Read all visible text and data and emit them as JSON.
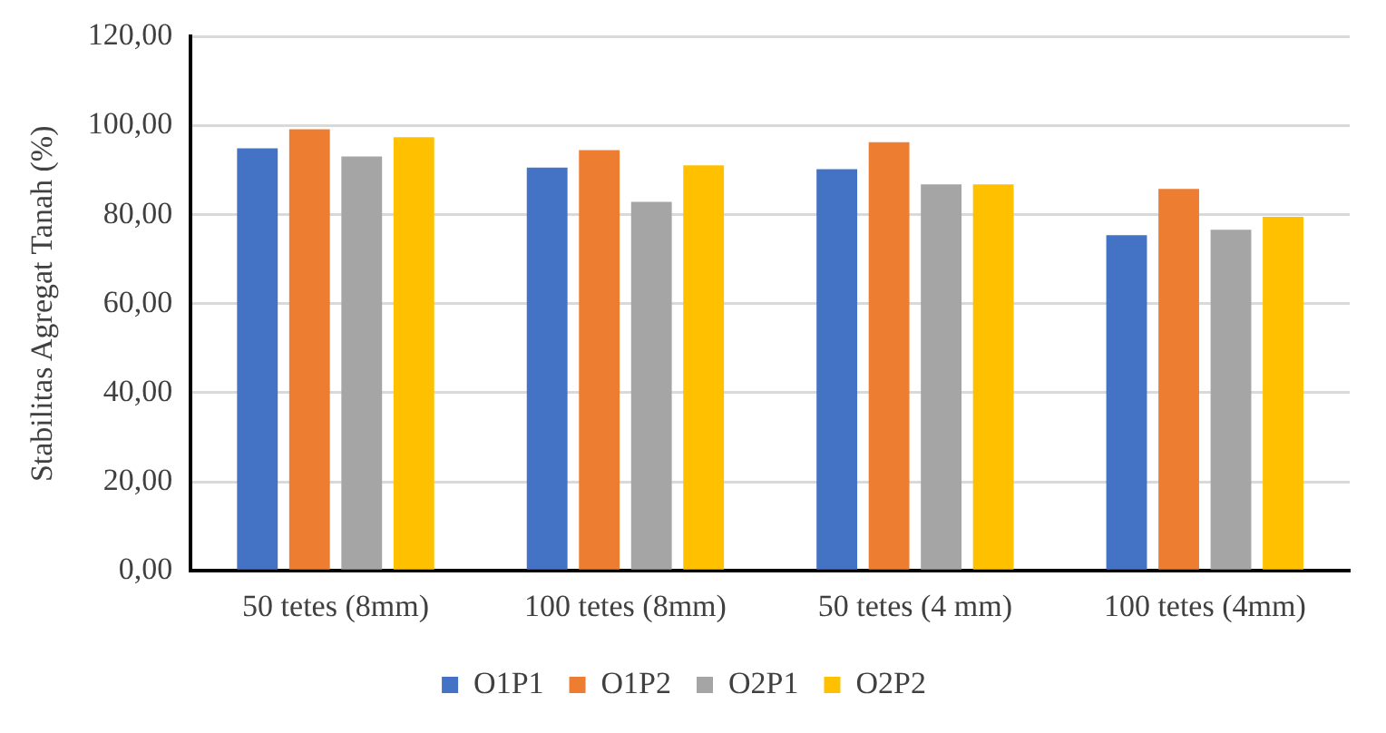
{
  "chart_data": {
    "type": "bar",
    "ylabel": "Stabilitas Agregat Tanah (%)",
    "categories": [
      "50 tetes (8mm)",
      "100 tetes (8mm)",
      "50 tetes (4 mm)",
      "100 tetes (4mm)"
    ],
    "series": [
      {
        "name": "O1P1",
        "color": "#4472c4",
        "values": [
          94.9,
          90.6,
          90.2,
          75.4
        ]
      },
      {
        "name": "O1P2",
        "color": "#ed7d31",
        "values": [
          99.2,
          94.5,
          96.3,
          85.8
        ]
      },
      {
        "name": "O2P1",
        "color": "#a5a5a5",
        "values": [
          93.1,
          82.9,
          86.8,
          76.6
        ]
      },
      {
        "name": "O2P2",
        "color": "#ffc000",
        "values": [
          97.4,
          91.1,
          86.8,
          79.5
        ]
      }
    ],
    "ylim": [
      0,
      120
    ],
    "yticks": [
      {
        "value": 0,
        "label": "0,00"
      },
      {
        "value": 20,
        "label": "20,00"
      },
      {
        "value": 40,
        "label": "40,00"
      },
      {
        "value": 60,
        "label": "60,00"
      },
      {
        "value": 80,
        "label": "80,00"
      },
      {
        "value": 100,
        "label": "100,00"
      },
      {
        "value": 120,
        "label": "120,00"
      }
    ],
    "grid": "y",
    "legend": "bottom"
  }
}
